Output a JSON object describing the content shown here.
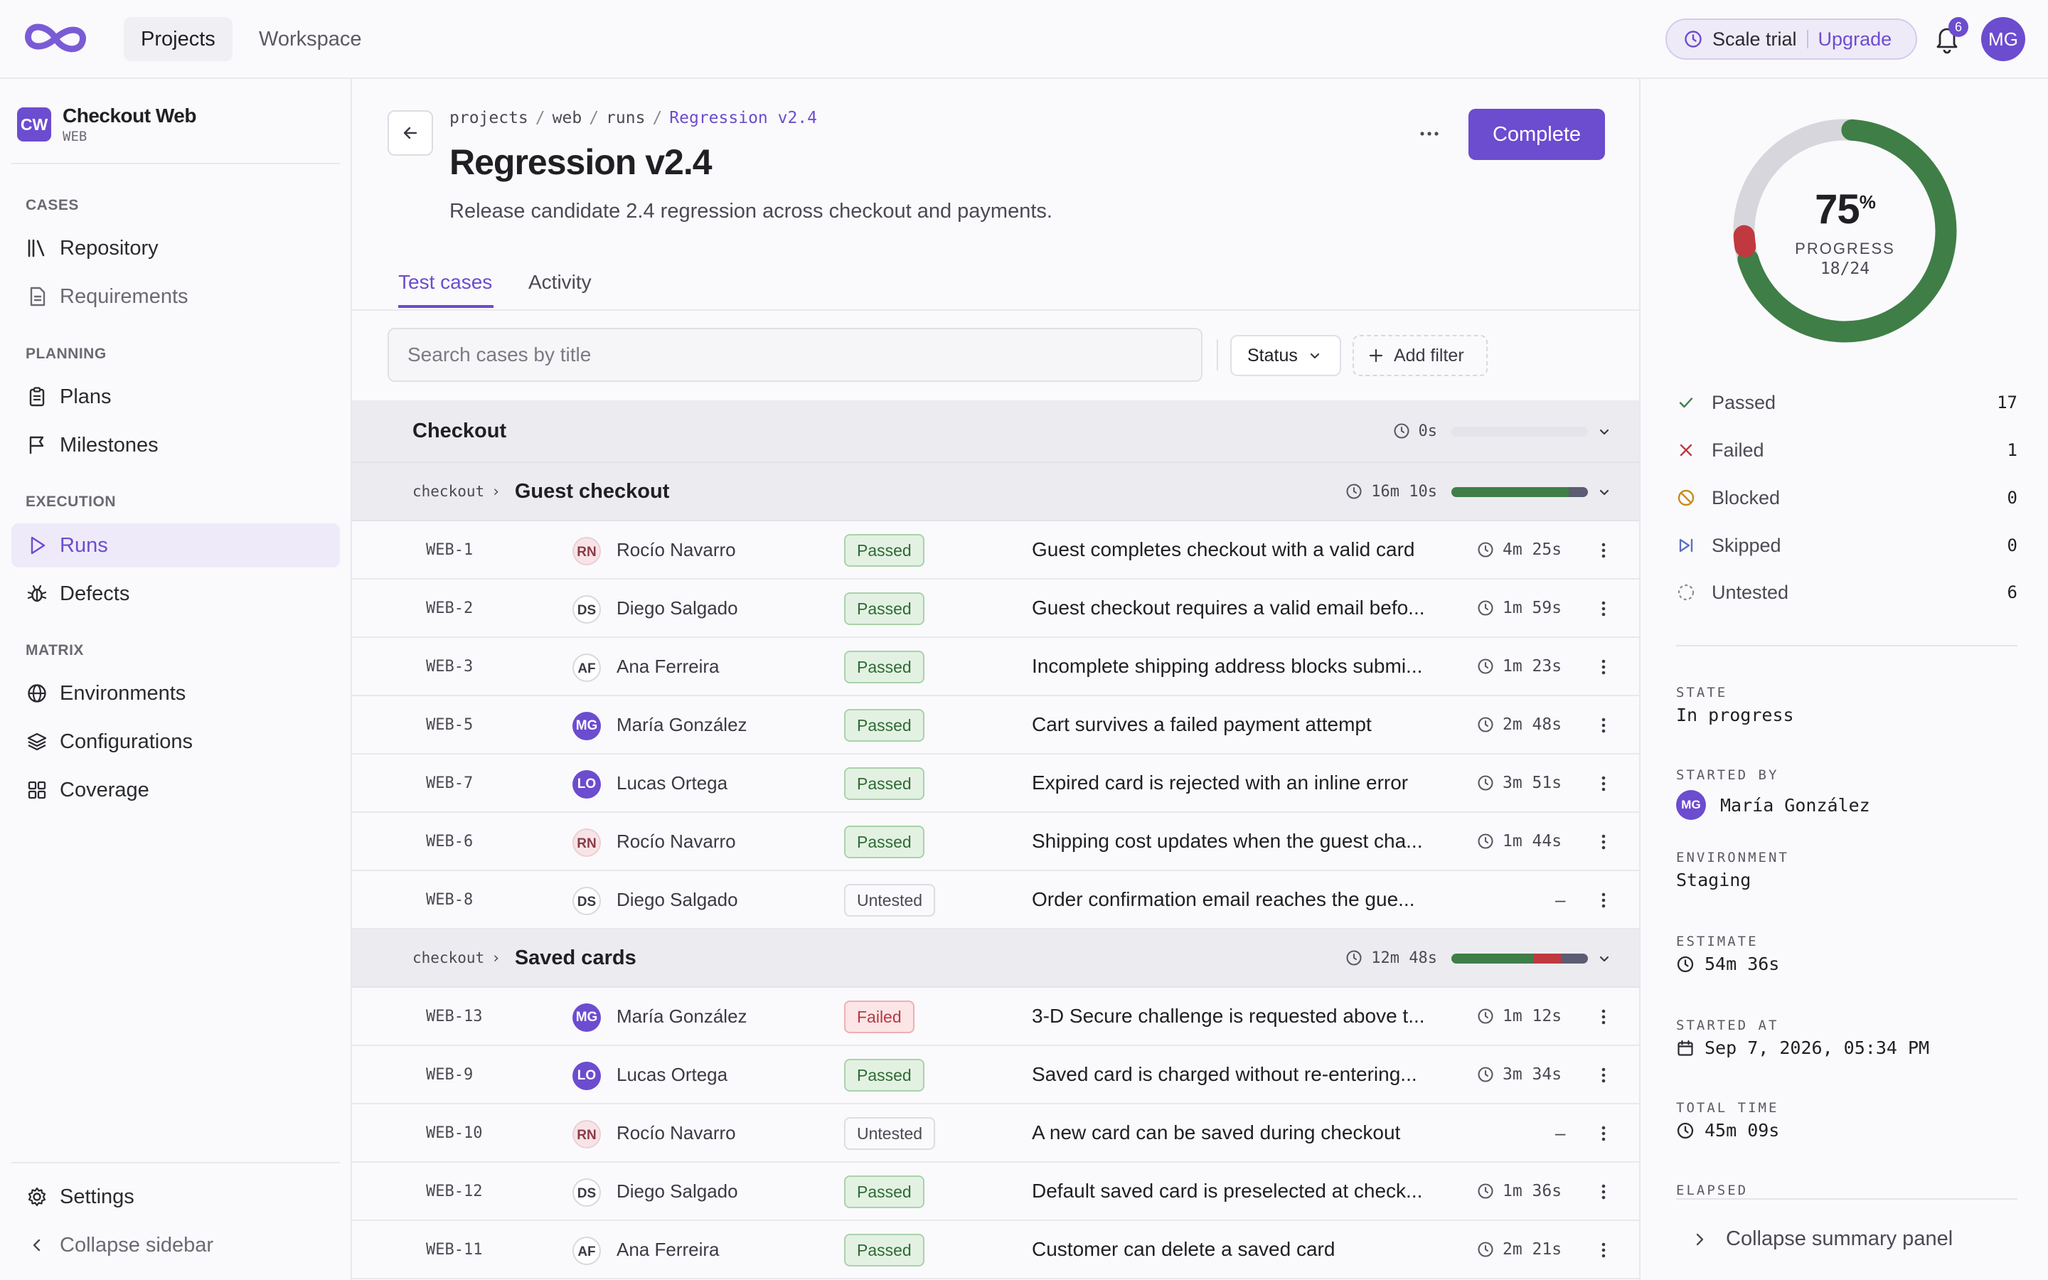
{
  "topbar": {
    "nav": [
      "Projects",
      "Workspace"
    ],
    "trial_label": "Scale trial",
    "upgrade_label": "Upgrade",
    "notification_count": "6",
    "user_initials": "MG"
  },
  "sidebar": {
    "project_badge": "CW",
    "project_name": "Checkout Web",
    "project_code": "WEB",
    "sections": {
      "cases": "CASES",
      "planning": "PLANNING",
      "execution": "EXECUTION",
      "matrix": "MATRIX"
    },
    "items": {
      "repository": "Repository",
      "requirements": "Requirements",
      "plans": "Plans",
      "milestones": "Milestones",
      "runs": "Runs",
      "defects": "Defects",
      "environments": "Environments",
      "configurations": "Configurations",
      "coverage": "Coverage"
    },
    "settings": "Settings",
    "collapse": "Collapse sidebar"
  },
  "main": {
    "breadcrumb": [
      "projects",
      "web",
      "runs",
      "Regression v2.4"
    ],
    "title": "Regression v2.4",
    "description": "Release candidate 2.4 regression across checkout and payments.",
    "complete_label": "Complete",
    "tabs": [
      "Test cases",
      "Activity"
    ],
    "search_placeholder": "Search cases by title",
    "status_filter": "Status",
    "add_filter": "Add filter",
    "groups": [
      {
        "title": "Checkout",
        "time": "0s",
        "passed": 0,
        "failed": 0,
        "untested": 0
      },
      {
        "path": "checkout",
        "title": "Guest checkout",
        "time": "16m 10s",
        "passed": 6,
        "failed": 0,
        "untested": 1
      },
      {
        "path": "checkout",
        "title": "Saved cards",
        "time": "12m 48s",
        "passed": 3,
        "failed": 1,
        "untested": 1
      }
    ],
    "rows_guest": [
      {
        "id": "WEB-1",
        "initials": "RN",
        "av": "rn",
        "name": "Rocío Navarro",
        "status": "Passed",
        "st": "passed",
        "title": "Guest completes checkout with a valid card",
        "time": "4m 25s"
      },
      {
        "id": "WEB-2",
        "initials": "DS",
        "av": "ds",
        "name": "Diego Salgado",
        "status": "Passed",
        "st": "passed",
        "title": "Guest checkout requires a valid email befo...",
        "time": "1m 59s"
      },
      {
        "id": "WEB-3",
        "initials": "AF",
        "av": "af",
        "name": "Ana Ferreira",
        "status": "Passed",
        "st": "passed",
        "title": "Incomplete shipping address blocks submi...",
        "time": "1m 23s"
      },
      {
        "id": "WEB-5",
        "initials": "MG",
        "av": "mg",
        "name": "María González",
        "status": "Passed",
        "st": "passed",
        "title": "Cart survives a failed payment attempt",
        "time": "2m 48s"
      },
      {
        "id": "WEB-7",
        "initials": "LO",
        "av": "lo",
        "name": "Lucas Ortega",
        "status": "Passed",
        "st": "passed",
        "title": "Expired card is rejected with an inline error",
        "time": "3m 51s"
      },
      {
        "id": "WEB-6",
        "initials": "RN",
        "av": "rn",
        "name": "Rocío Navarro",
        "status": "Passed",
        "st": "passed",
        "title": "Shipping cost updates when the guest cha...",
        "time": "1m 44s"
      },
      {
        "id": "WEB-8",
        "initials": "DS",
        "av": "ds",
        "name": "Diego Salgado",
        "status": "Untested",
        "st": "untested",
        "title": "Order confirmation email reaches the gue...",
        "time": ""
      }
    ],
    "rows_saved": [
      {
        "id": "WEB-13",
        "initials": "MG",
        "av": "mg",
        "name": "María González",
        "status": "Failed",
        "st": "failed",
        "title": "3-D Secure challenge is requested above t...",
        "time": "1m 12s"
      },
      {
        "id": "WEB-9",
        "initials": "LO",
        "av": "lo",
        "name": "Lucas Ortega",
        "status": "Passed",
        "st": "passed",
        "title": "Saved card is charged without re-entering...",
        "time": "3m 34s"
      },
      {
        "id": "WEB-10",
        "initials": "RN",
        "av": "rn",
        "name": "Rocío Navarro",
        "status": "Untested",
        "st": "untested",
        "title": "A new card can be saved during checkout",
        "time": ""
      },
      {
        "id": "WEB-12",
        "initials": "DS",
        "av": "ds",
        "name": "Diego Salgado",
        "status": "Passed",
        "st": "passed",
        "title": "Default saved card is preselected at check...",
        "time": "1m 36s"
      },
      {
        "id": "WEB-11",
        "initials": "AF",
        "av": "af",
        "name": "Ana Ferreira",
        "status": "Passed",
        "st": "passed",
        "title": "Customer can delete a saved card",
        "time": "2m 21s"
      }
    ],
    "empty_time": "–"
  },
  "panel": {
    "progress_value": "75",
    "progress_unit": "%",
    "progress_label": "PROGRESS",
    "progress_count": "18/24",
    "progress_fraction": 0.75,
    "failed_fraction": 0.0417,
    "stats": [
      {
        "label": "Passed",
        "value": "17"
      },
      {
        "label": "Failed",
        "value": "1"
      },
      {
        "label": "Blocked",
        "value": "0"
      },
      {
        "label": "Skipped",
        "value": "0"
      },
      {
        "label": "Untested",
        "value": "6"
      }
    ],
    "meta": {
      "state_label": "STATE",
      "state": "In progress",
      "started_by_label": "STARTED BY",
      "started_by_initials": "MG",
      "started_by": "María González",
      "environment_label": "ENVIRONMENT",
      "environment": "Staging",
      "estimate_label": "ESTIMATE",
      "estimate": "54m 36s",
      "started_at_label": "STARTED AT",
      "started_at": "Sep 7, 2026, 05:34 PM",
      "total_time_label": "TOTAL TIME",
      "total_time": "45m 09s",
      "elapsed_label": "ELAPSED"
    },
    "collapse": "Collapse summary panel"
  },
  "colors": {
    "accent": "#6c4ccf",
    "passed": "#3f7e46",
    "failed": "#c0393f",
    "untested": "#d6d6dc"
  }
}
